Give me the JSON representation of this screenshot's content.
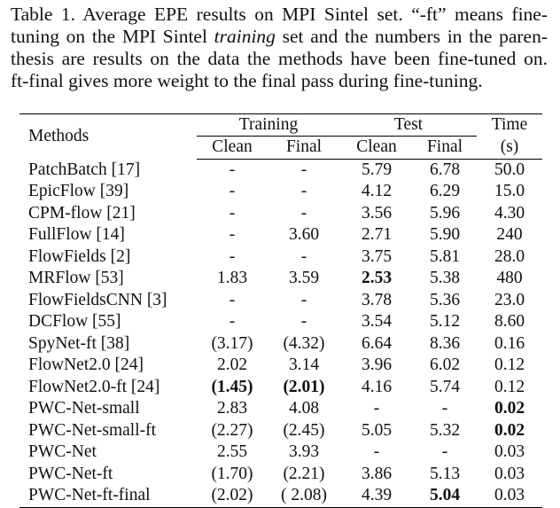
{
  "caption": {
    "lines": [
      [
        "Table 1. Average EPE results on MPI Sintel set. “-ft” means fine-"
      ],
      [
        "tuning on the MPI Sintel ",
        "training",
        " set and the numbers in the paren-"
      ],
      [
        "thesis are results on the data the methods have been fine-tuned on."
      ],
      [
        "ft-final gives more weight to the final pass during fine-tuning."
      ]
    ],
    "italic_segments": [
      [
        1,
        1
      ]
    ]
  },
  "table": {
    "header": {
      "methods": "Methods",
      "training": "Training",
      "test": "Test",
      "time": "Time",
      "time_unit": "(s)",
      "subcolumns": [
        "Clean",
        "Final",
        "Clean",
        "Final"
      ]
    },
    "rows": [
      [
        "PatchBatch [17]",
        "-",
        "-",
        "5.79",
        "6.78",
        "50.0"
      ],
      [
        "EpicFlow [39]",
        "-",
        "-",
        "4.12",
        "6.29",
        "15.0"
      ],
      [
        "CPM-flow [21]",
        "-",
        "-",
        "3.56",
        "5.96",
        "4.30"
      ],
      [
        "FullFlow [14]",
        "-",
        "3.60",
        "2.71",
        "5.90",
        "240"
      ],
      [
        "FlowFields [2]",
        "-",
        "-",
        "3.75",
        "5.81",
        "28.0"
      ],
      [
        "MRFlow [53]",
        "1.83",
        "3.59",
        "2.53",
        "5.38",
        "480"
      ],
      [
        "FlowFieldsCNN [3]",
        "-",
        "-",
        "3.78",
        "5.36",
        "23.0"
      ],
      [
        "DCFlow [55]",
        "-",
        "-",
        "3.54",
        "5.12",
        "8.60"
      ],
      [
        "SpyNet-ft [38]",
        "(3.17)",
        "(4.32)",
        "6.64",
        "8.36",
        "0.16"
      ],
      [
        "FlowNet2.0 [24]",
        "2.02",
        "3.14",
        "3.96",
        "6.02",
        "0.12"
      ],
      [
        "FlowNet2.0-ft [24]",
        "(1.45)",
        "(2.01)",
        "4.16",
        "5.74",
        "0.12"
      ],
      [
        "PWC-Net-small",
        "2.83",
        "4.08",
        "-",
        "-",
        "0.02"
      ],
      [
        "PWC-Net-small-ft",
        "(2.27)",
        "(2.45)",
        "5.05",
        "5.32",
        "0.02"
      ],
      [
        "PWC-Net",
        "2.55",
        "3.93",
        "-",
        "-",
        "0.03"
      ],
      [
        "PWC-Net-ft",
        "(1.70)",
        "(2.21)",
        "3.86",
        "5.13",
        "0.03"
      ],
      [
        "PWC-Net-ft-final",
        "(2.02)",
        "( 2.08)",
        "4.39",
        "5.04",
        "0.03"
      ]
    ],
    "bold_cells": [
      [
        5,
        3
      ],
      [
        10,
        1
      ],
      [
        10,
        2
      ],
      [
        11,
        5
      ],
      [
        12,
        5
      ],
      [
        15,
        4
      ]
    ]
  }
}
